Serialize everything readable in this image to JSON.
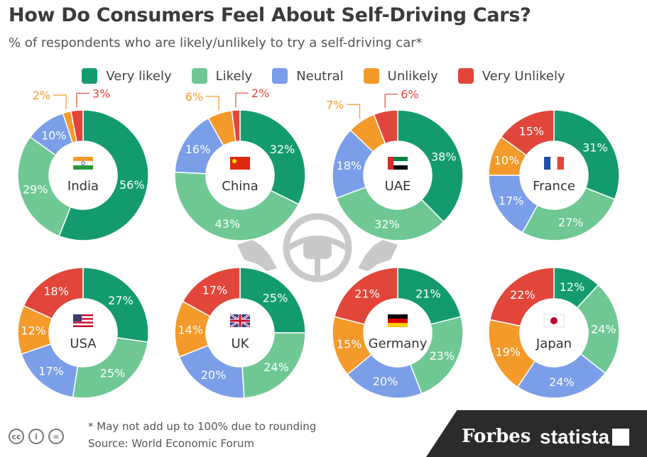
{
  "title": "How Do Consumers Feel About Self-Driving Cars?",
  "subtitle": "% of respondents who are likely/unlikely to try a self-driving car*",
  "legend": [
    {
      "label": "Very likely",
      "color": "#139b6f"
    },
    {
      "label": "Likely",
      "color": "#6fc893"
    },
    {
      "label": "Neutral",
      "color": "#7b9ee8"
    },
    {
      "label": "Unlikely",
      "color": "#f39a2a"
    },
    {
      "label": "Very Unlikely",
      "color": "#e2463a"
    }
  ],
  "footer": {
    "note": "* May not add up to 100% due to rounding",
    "source": "Source: World Economic Forum",
    "brand_forbes": "Forbes",
    "brand_statista": "statista",
    "license_icons": [
      "cc-icon",
      "attribution-icon",
      "no-derivatives-icon"
    ]
  },
  "chart_data": {
    "type": "pie",
    "series_names": [
      "Very likely",
      "Likely",
      "Neutral",
      "Unlikely",
      "Very Unlikely"
    ],
    "charts": [
      {
        "country": "India",
        "flag": "india-flag-icon",
        "values": [
          56,
          29,
          10,
          2,
          3
        ]
      },
      {
        "country": "China",
        "flag": "china-flag-icon",
        "values": [
          32,
          43,
          16,
          6,
          2
        ]
      },
      {
        "country": "UAE",
        "flag": "uae-flag-icon",
        "values": [
          38,
          32,
          18,
          7,
          6
        ]
      },
      {
        "country": "France",
        "flag": "france-flag-icon",
        "values": [
          31,
          27,
          17,
          10,
          15
        ]
      },
      {
        "country": "USA",
        "flag": "usa-flag-icon",
        "values": [
          27,
          25,
          17,
          12,
          18
        ]
      },
      {
        "country": "UK",
        "flag": "uk-flag-icon",
        "values": [
          25,
          24,
          20,
          14,
          17
        ]
      },
      {
        "country": "Germany",
        "flag": "germany-flag-icon",
        "values": [
          21,
          23,
          20,
          15,
          21
        ]
      },
      {
        "country": "Japan",
        "flag": "japan-flag-icon",
        "values": [
          12,
          24,
          24,
          19,
          22
        ]
      }
    ]
  }
}
